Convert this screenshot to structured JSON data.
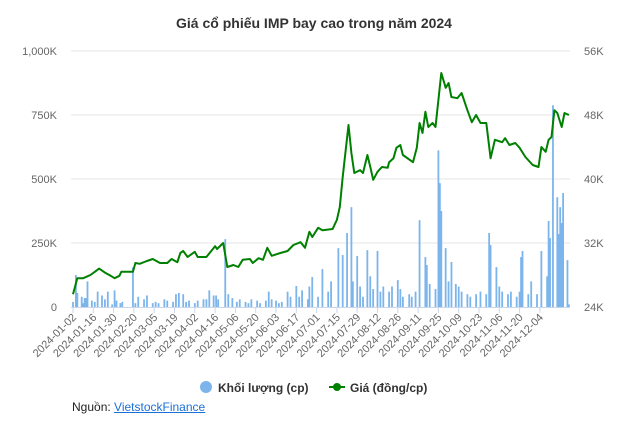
{
  "chart_data": {
    "type": "bar+line",
    "title": "Giá cổ phiếu IMP bay cao trong năm 2024",
    "x_ticks": [
      "2024-01-02",
      "2024-01-16",
      "2024-01-30",
      "2024-02-20",
      "2024-03-05",
      "2024-03-19",
      "2024-04-02",
      "2024-04-16",
      "2024-05-06",
      "2024-05-20",
      "2024-06-03",
      "2024-06-17",
      "2024-07-01",
      "2024-07-15",
      "2024-07-29",
      "2024-08-12",
      "2024-08-26",
      "2024-09-11",
      "2024-09-25",
      "2024-10-09",
      "2024-10-23",
      "2024-11-06",
      "2024-11-20",
      "2024-12-04"
    ],
    "y_left": {
      "ticks": [
        "0",
        "250K",
        "500K",
        "750K",
        "1,000K"
      ],
      "range": [
        0,
        1000000
      ]
    },
    "y_right": {
      "ticks": [
        "24K",
        "32K",
        "40K",
        "48K",
        "56K"
      ],
      "range": [
        24000,
        56000
      ]
    },
    "grid": true,
    "legend_position": "bottom",
    "colors": {
      "volume": "#7cb5ec",
      "price": "#008000"
    },
    "series": [
      {
        "name": "Khối lượng (cp)",
        "type": "bar",
        "axis": "left",
        "unit": "thousand shares",
        "points": [
          [
            "2024-01-02",
            20
          ],
          [
            "2024-01-04",
            125
          ],
          [
            "2024-01-05",
            55
          ],
          [
            "2024-01-08",
            40
          ],
          [
            "2024-01-09",
            15
          ],
          [
            "2024-01-10",
            35
          ],
          [
            "2024-01-11",
            35
          ],
          [
            "2024-01-12",
            100
          ],
          [
            "2024-01-15",
            25
          ],
          [
            "2024-01-17",
            20
          ],
          [
            "2024-01-19",
            60
          ],
          [
            "2024-01-22",
            45
          ],
          [
            "2024-01-24",
            30
          ],
          [
            "2024-01-26",
            60
          ],
          [
            "2024-01-29",
            10
          ],
          [
            "2024-01-31",
            65
          ],
          [
            "2024-02-02",
            25
          ],
          [
            "2024-02-06",
            15
          ],
          [
            "2024-02-08",
            20
          ],
          [
            "2024-02-19",
            155
          ],
          [
            "2024-02-21",
            15
          ],
          [
            "2024-02-23",
            40
          ],
          [
            "2024-02-27",
            30
          ],
          [
            "2024-02-29",
            45
          ],
          [
            "2024-03-04",
            15
          ],
          [
            "2024-03-06",
            20
          ],
          [
            "2024-03-08",
            15
          ],
          [
            "2024-03-12",
            30
          ],
          [
            "2024-03-14",
            25
          ],
          [
            "2024-03-18",
            20
          ],
          [
            "2024-03-20",
            50
          ],
          [
            "2024-03-22",
            55
          ],
          [
            "2024-03-25",
            50
          ],
          [
            "2024-03-27",
            20
          ],
          [
            "2024-03-29",
            25
          ],
          [
            "2024-04-02",
            15
          ],
          [
            "2024-04-04",
            25
          ],
          [
            "2024-04-08",
            30
          ],
          [
            "2024-04-10",
            30
          ],
          [
            "2024-04-12",
            65
          ],
          [
            "2024-04-15",
            45
          ],
          [
            "2024-04-17",
            45
          ],
          [
            "2024-04-19",
            30
          ],
          [
            "2024-04-26",
            265
          ],
          [
            "2024-04-29",
            50
          ],
          [
            "2024-05-03",
            35
          ],
          [
            "2024-05-07",
            20
          ],
          [
            "2024-05-09",
            30
          ],
          [
            "2024-05-13",
            20
          ],
          [
            "2024-05-15",
            15
          ],
          [
            "2024-05-17",
            30
          ],
          [
            "2024-05-21",
            25
          ],
          [
            "2024-05-23",
            15
          ],
          [
            "2024-05-27",
            25
          ],
          [
            "2024-05-29",
            60
          ],
          [
            "2024-05-31",
            30
          ],
          [
            "2024-06-03",
            25
          ],
          [
            "2024-06-05",
            15
          ],
          [
            "2024-06-07",
            20
          ],
          [
            "2024-06-11",
            60
          ],
          [
            "2024-06-13",
            40
          ],
          [
            "2024-06-17",
            82
          ],
          [
            "2024-06-19",
            40
          ],
          [
            "2024-06-21",
            65
          ],
          [
            "2024-06-25",
            30
          ],
          [
            "2024-06-26",
            80
          ],
          [
            "2024-06-28",
            117
          ],
          [
            "2024-07-02",
            40
          ],
          [
            "2024-07-05",
            148
          ],
          [
            "2024-07-09",
            60
          ],
          [
            "2024-07-11",
            100
          ],
          [
            "2024-07-16",
            230
          ],
          [
            "2024-07-19",
            203
          ],
          [
            "2024-07-22",
            289
          ],
          [
            "2024-07-25",
            390
          ],
          [
            "2024-07-26",
            100
          ],
          [
            "2024-07-29",
            199
          ],
          [
            "2024-07-31",
            80
          ],
          [
            "2024-08-02",
            40
          ],
          [
            "2024-08-05",
            222
          ],
          [
            "2024-08-07",
            120
          ],
          [
            "2024-08-09",
            70
          ],
          [
            "2024-08-12",
            219
          ],
          [
            "2024-08-14",
            60
          ],
          [
            "2024-08-16",
            80
          ],
          [
            "2024-08-20",
            60
          ],
          [
            "2024-08-22",
            80
          ],
          [
            "2024-08-26",
            105
          ],
          [
            "2024-08-28",
            70
          ],
          [
            "2024-08-30",
            40
          ],
          [
            "2024-09-04",
            50
          ],
          [
            "2024-09-06",
            40
          ],
          [
            "2024-09-09",
            60
          ],
          [
            "2024-09-12",
            339
          ],
          [
            "2024-09-16",
            195
          ],
          [
            "2024-09-17",
            164
          ],
          [
            "2024-09-19",
            90
          ],
          [
            "2024-09-23",
            70
          ],
          [
            "2024-09-25",
            612
          ],
          [
            "2024-09-26",
            484
          ],
          [
            "2024-09-27",
            375
          ],
          [
            "2024-09-30",
            230
          ],
          [
            "2024-10-02",
            100
          ],
          [
            "2024-10-04",
            176
          ],
          [
            "2024-10-07",
            90
          ],
          [
            "2024-10-09",
            80
          ],
          [
            "2024-10-11",
            60
          ],
          [
            "2024-10-15",
            50
          ],
          [
            "2024-10-17",
            40
          ],
          [
            "2024-10-21",
            50
          ],
          [
            "2024-10-24",
            60
          ],
          [
            "2024-10-28",
            50
          ],
          [
            "2024-10-30",
            289
          ],
          [
            "2024-10-31",
            242
          ],
          [
            "2024-11-04",
            156
          ],
          [
            "2024-11-06",
            80
          ],
          [
            "2024-11-08",
            60
          ],
          [
            "2024-11-12",
            50
          ],
          [
            "2024-11-14",
            60
          ],
          [
            "2024-11-18",
            40
          ],
          [
            "2024-11-20",
            60
          ],
          [
            "2024-11-21",
            195
          ],
          [
            "2024-11-22",
            219
          ],
          [
            "2024-11-26",
            50
          ],
          [
            "2024-11-28",
            100
          ],
          [
            "2024-12-02",
            50
          ],
          [
            "2024-12-05",
            219
          ],
          [
            "2024-12-09",
            120
          ],
          [
            "2024-12-10",
            336
          ],
          [
            "2024-12-11",
            269
          ],
          [
            "2024-12-13",
            788
          ],
          [
            "2024-12-16",
            429
          ],
          [
            "2024-12-17",
            285
          ],
          [
            "2024-12-18",
            390
          ],
          [
            "2024-12-19",
            328
          ],
          [
            "2024-12-20",
            445
          ],
          [
            "2024-12-23",
            183
          ],
          [
            "2024-12-24",
            10
          ]
        ]
      },
      {
        "name": "Giá (đồng/cp)",
        "type": "line",
        "axis": "right",
        "unit": "thousand VND",
        "points": [
          [
            "2024-01-02",
            25.6
          ],
          [
            "2024-01-05",
            27.6
          ],
          [
            "2024-01-09",
            27.6
          ],
          [
            "2024-01-14",
            28.0
          ],
          [
            "2024-01-17",
            28.4
          ],
          [
            "2024-01-20",
            28.8
          ],
          [
            "2024-01-24",
            28.3
          ],
          [
            "2024-01-27",
            28.0
          ],
          [
            "2024-01-31",
            27.6
          ],
          [
            "2024-02-05",
            27.9
          ],
          [
            "2024-02-07",
            28.4
          ],
          [
            "2024-02-19",
            28.4
          ],
          [
            "2024-02-21",
            29.5
          ],
          [
            "2024-02-24",
            29.4
          ],
          [
            "2024-02-29",
            29.75
          ],
          [
            "2024-03-04",
            30.0
          ],
          [
            "2024-03-09",
            29.5
          ],
          [
            "2024-03-14",
            29.5
          ],
          [
            "2024-03-17",
            30.0
          ],
          [
            "2024-03-21",
            29.6
          ],
          [
            "2024-03-23",
            30.75
          ],
          [
            "2024-03-25",
            31.0
          ],
          [
            "2024-03-28",
            30.25
          ],
          [
            "2024-04-02",
            30.9
          ],
          [
            "2024-04-04",
            30.25
          ],
          [
            "2024-04-10",
            30.25
          ],
          [
            "2024-04-16",
            31.6
          ],
          [
            "2024-04-18",
            31.25
          ],
          [
            "2024-04-24",
            32.0
          ],
          [
            "2024-04-28",
            29.0
          ],
          [
            "2024-05-04",
            29.25
          ],
          [
            "2024-05-08",
            29.0
          ],
          [
            "2024-05-11",
            29.9
          ],
          [
            "2024-05-16",
            30.0
          ],
          [
            "2024-05-18",
            29.5
          ],
          [
            "2024-05-22",
            30.1
          ],
          [
            "2024-05-25",
            29.9
          ],
          [
            "2024-05-28",
            31.4
          ],
          [
            "2024-05-31",
            30.4
          ],
          [
            "2024-06-06",
            30.75
          ],
          [
            "2024-06-11",
            31.0
          ],
          [
            "2024-06-15",
            31.75
          ],
          [
            "2024-06-20",
            32.1
          ],
          [
            "2024-06-23",
            31.4
          ],
          [
            "2024-06-26",
            33.4
          ],
          [
            "2024-06-28",
            32.75
          ],
          [
            "2024-07-02",
            33.9
          ],
          [
            "2024-07-05",
            33.6
          ],
          [
            "2024-07-12",
            33.75
          ],
          [
            "2024-07-15",
            34.9
          ],
          [
            "2024-07-17",
            36.5
          ],
          [
            "2024-07-19",
            40.25
          ],
          [
            "2024-07-23",
            46.75
          ],
          [
            "2024-07-25",
            43.25
          ],
          [
            "2024-07-27",
            40.75
          ],
          [
            "2024-07-31",
            41.1
          ],
          [
            "2024-08-02",
            40.75
          ],
          [
            "2024-08-05",
            43.0
          ],
          [
            "2024-08-07",
            41.5
          ],
          [
            "2024-08-09",
            39.9
          ],
          [
            "2024-08-12",
            40.9
          ],
          [
            "2024-08-15",
            41.5
          ],
          [
            "2024-08-19",
            41.4
          ],
          [
            "2024-08-20",
            42.1
          ],
          [
            "2024-08-23",
            42.6
          ],
          [
            "2024-08-25",
            43.9
          ],
          [
            "2024-08-28",
            44.25
          ],
          [
            "2024-08-30",
            43.0
          ],
          [
            "2024-09-07",
            42.1
          ],
          [
            "2024-09-10",
            43.9
          ],
          [
            "2024-09-12",
            47.0
          ],
          [
            "2024-09-14",
            45.75
          ],
          [
            "2024-09-16",
            48.4
          ],
          [
            "2024-09-18",
            46.5
          ],
          [
            "2024-09-21",
            47.0
          ],
          [
            "2024-09-23",
            46.5
          ],
          [
            "2024-09-27",
            53.25
          ],
          [
            "2024-09-30",
            51.4
          ],
          [
            "2024-10-02",
            52.0
          ],
          [
            "2024-10-04",
            50.25
          ],
          [
            "2024-10-08",
            50.1
          ],
          [
            "2024-10-11",
            50.75
          ],
          [
            "2024-10-15",
            48.6
          ],
          [
            "2024-10-18",
            47.1
          ],
          [
            "2024-10-21",
            48.0
          ],
          [
            "2024-10-24",
            47.0
          ],
          [
            "2024-10-28",
            47.0
          ],
          [
            "2024-10-31",
            42.6
          ],
          [
            "2024-11-03",
            44.9
          ],
          [
            "2024-11-08",
            44.6
          ],
          [
            "2024-11-10",
            45.1
          ],
          [
            "2024-11-13",
            44.25
          ],
          [
            "2024-11-17",
            44.5
          ],
          [
            "2024-11-20",
            43.9
          ],
          [
            "2024-11-24",
            42.75
          ],
          [
            "2024-11-29",
            41.75
          ],
          [
            "2024-12-03",
            41.5
          ],
          [
            "2024-12-05",
            44.0
          ],
          [
            "2024-12-08",
            43.4
          ],
          [
            "2024-12-10",
            44.9
          ],
          [
            "2024-12-12",
            45.25
          ],
          [
            "2024-12-14",
            48.6
          ],
          [
            "2024-12-16",
            48.25
          ],
          [
            "2024-12-19",
            46.5
          ],
          [
            "2024-12-21",
            48.25
          ],
          [
            "2024-12-24",
            48.0
          ]
        ]
      }
    ]
  },
  "source": {
    "label": "Nguồn:",
    "link": "VietstockFinance"
  }
}
